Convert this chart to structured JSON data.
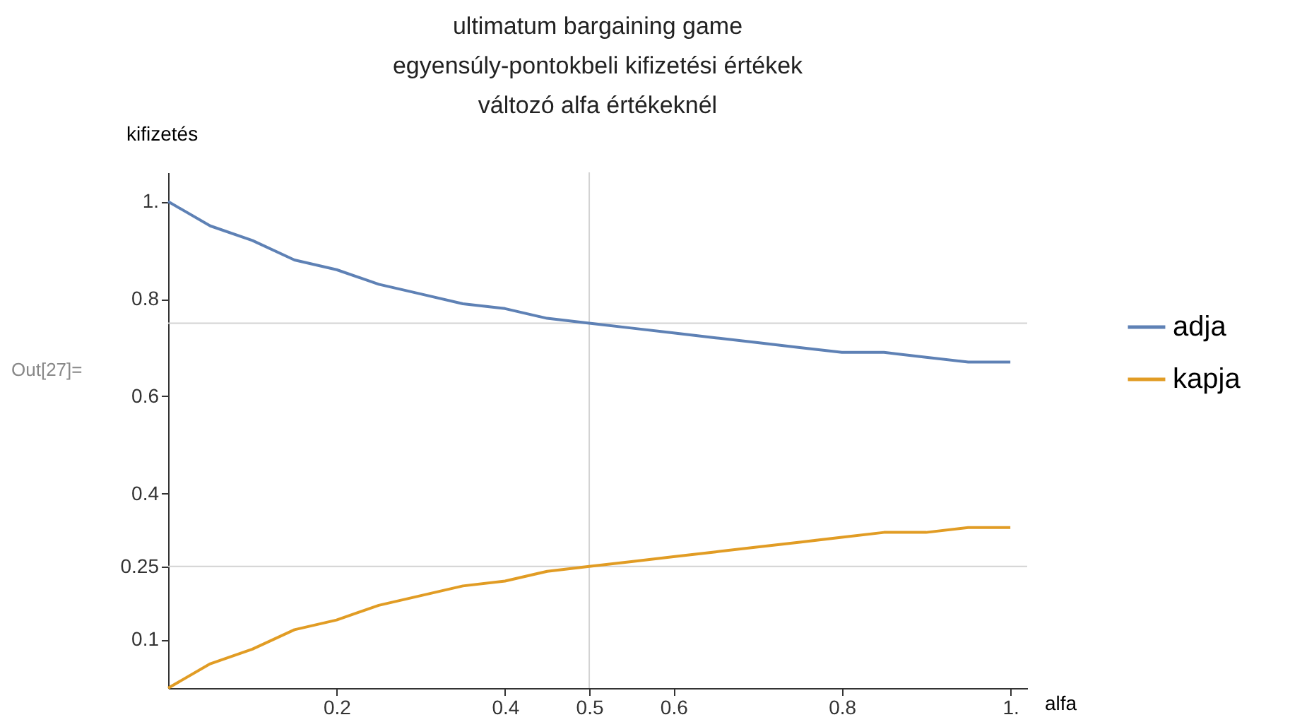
{
  "chart_data": {
    "type": "line",
    "title": [
      "ultimatum bargaining game",
      "egyensúly-pontokbeli kifizetési értékek",
      "változó alfa értékeknél"
    ],
    "xlabel": "alfa",
    "ylabel": "kifizetés",
    "annotations": [
      "Out[27]="
    ],
    "x": [
      0,
      0.05,
      0.1,
      0.15,
      0.2,
      0.25,
      0.3,
      0.35,
      0.4,
      0.45,
      0.5,
      0.55,
      0.6,
      0.65,
      0.7,
      0.75,
      0.8,
      0.85,
      0.9,
      0.95,
      1
    ],
    "series": [
      {
        "name": "adja",
        "color": "#5e81b5",
        "values": [
          1,
          0.95,
          0.92,
          0.88,
          0.86,
          0.83,
          0.81,
          0.79,
          0.78,
          0.76,
          0.75,
          0.74,
          0.73,
          0.72,
          0.71,
          0.7,
          0.69,
          0.69,
          0.68,
          0.67,
          0.67
        ]
      },
      {
        "name": "kapja",
        "color": "#e19c24",
        "values": [
          0,
          0.05,
          0.08,
          0.12,
          0.14,
          0.17,
          0.19,
          0.21,
          0.22,
          0.24,
          0.25,
          0.26,
          0.27,
          0.28,
          0.29,
          0.3,
          0.31,
          0.32,
          0.32,
          0.33,
          0.33
        ]
      }
    ],
    "xlim": [
      0,
      1.02
    ],
    "ylim": [
      0,
      1.06
    ],
    "xticks": [
      0.2,
      0.4,
      0.5,
      0.6,
      0.8,
      {
        "value": 1,
        "label": "1."
      }
    ],
    "yticks": [
      0.1,
      0.25,
      0.4,
      0.6,
      0.8,
      {
        "value": 1,
        "label": "1."
      }
    ],
    "ref_lines": [
      {
        "axis": "y",
        "value": 0.75,
        "color": "#d3d3d3"
      },
      {
        "axis": "y",
        "value": 0.25,
        "color": "#d3d3d3"
      },
      {
        "axis": "x",
        "value": 0.5,
        "color": "#d3d3d3"
      }
    ],
    "grid": false,
    "legend": "right",
    "line_style": "solid",
    "marker": "none"
  }
}
